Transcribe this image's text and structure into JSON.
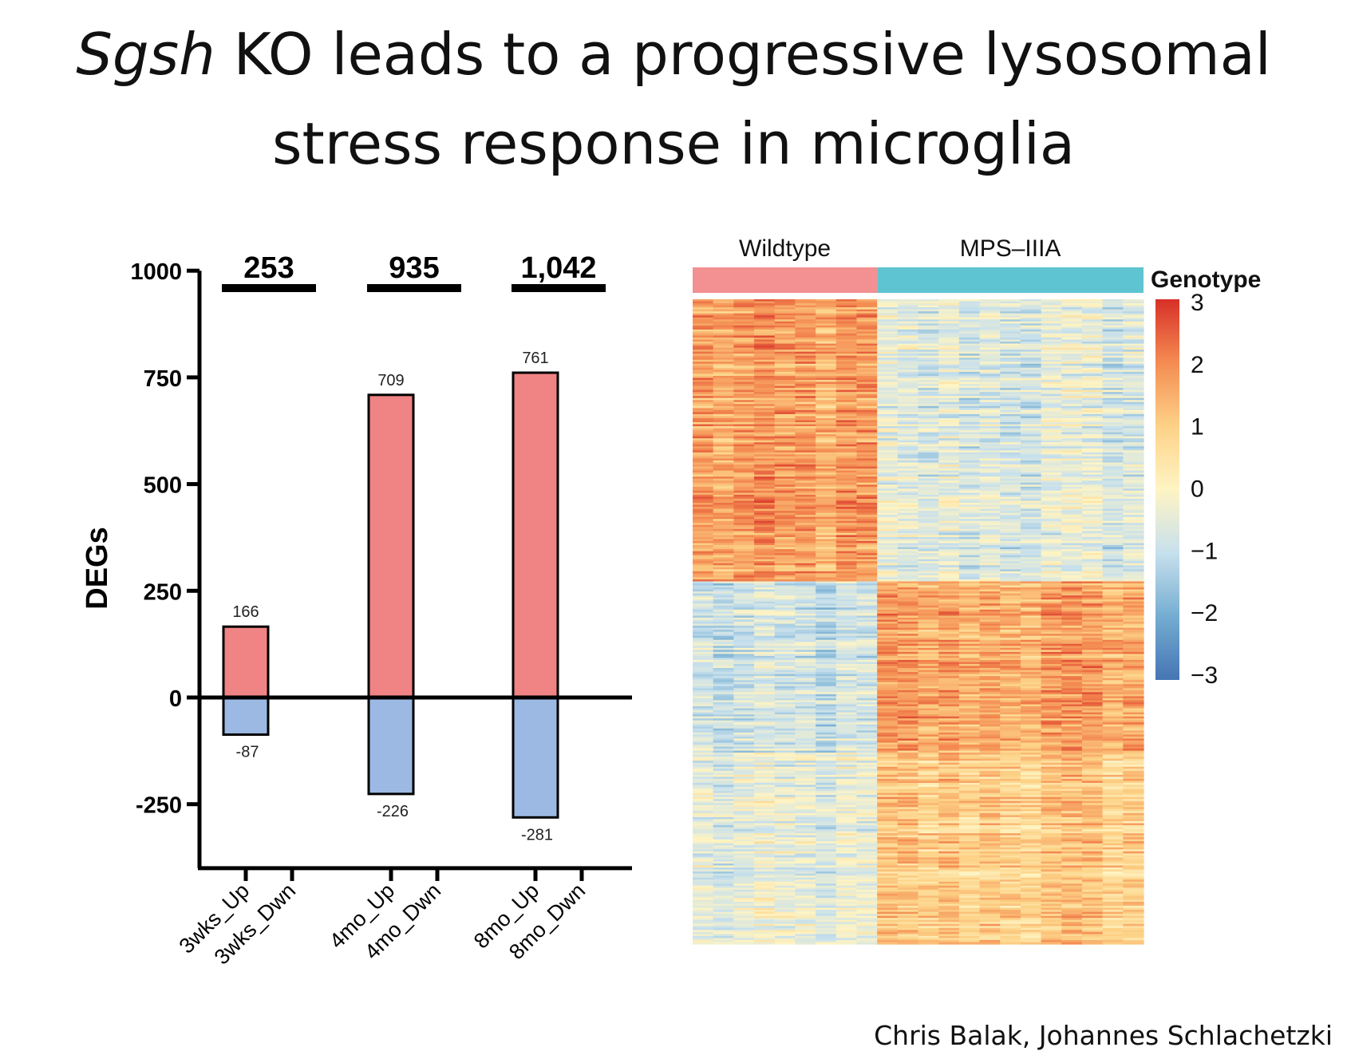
{
  "slide": {
    "title_italic": "Sgsh",
    "title_line1_rest": " KO leads to a progressive lysosomal",
    "title_line2": "stress response in microglia",
    "credit": "Chris Balak, Johannes Schlachetzki"
  },
  "colors": {
    "up": "#f08384",
    "down": "#9bb9e3",
    "wildtype": "#f29092",
    "mps": "#5ec4d1"
  },
  "chart_data": [
    {
      "type": "bar",
      "ylabel": "DEGs",
      "ylim": [
        -400,
        1000
      ],
      "yticks": [
        "1000",
        "750",
        "500",
        "250",
        "0",
        "-250"
      ],
      "yticks_values": [
        1000,
        750,
        500,
        250,
        0,
        -250
      ],
      "groups": [
        {
          "total": "253",
          "up_label": "3wks_Up",
          "down_label": "3wks_Dwn",
          "up": 166,
          "down": -87
        },
        {
          "total": "935",
          "up_label": "4mo_Up",
          "down_label": "4mo_Dwn",
          "up": 709,
          "down": -226
        },
        {
          "total": "1,042",
          "up_label": "8mo_Up",
          "down_label": "8mo_Dwn",
          "up": 761,
          "down": -281
        }
      ]
    },
    {
      "type": "heatmap",
      "column_groups": [
        {
          "name": "Wildtype",
          "columns": 9
        },
        {
          "name": "MPS–IIIA",
          "columns": 13
        }
      ],
      "annotation_legend_title": "Genotype",
      "colorbar_ticks": [
        "3",
        "2",
        "1",
        "0",
        "−1",
        "−2",
        "−3"
      ],
      "colorbar_values": [
        3,
        2,
        1,
        0,
        -1,
        -2,
        -3
      ],
      "row_clusters": [
        {
          "rows": 140,
          "wildtype_level": 1.6,
          "mps_level": -0.6
        },
        {
          "rows": 85,
          "wildtype_level": -0.9,
          "mps_level": 1.6
        },
        {
          "rows": 95,
          "wildtype_level": -0.5,
          "mps_level": 1.0
        }
      ]
    }
  ]
}
